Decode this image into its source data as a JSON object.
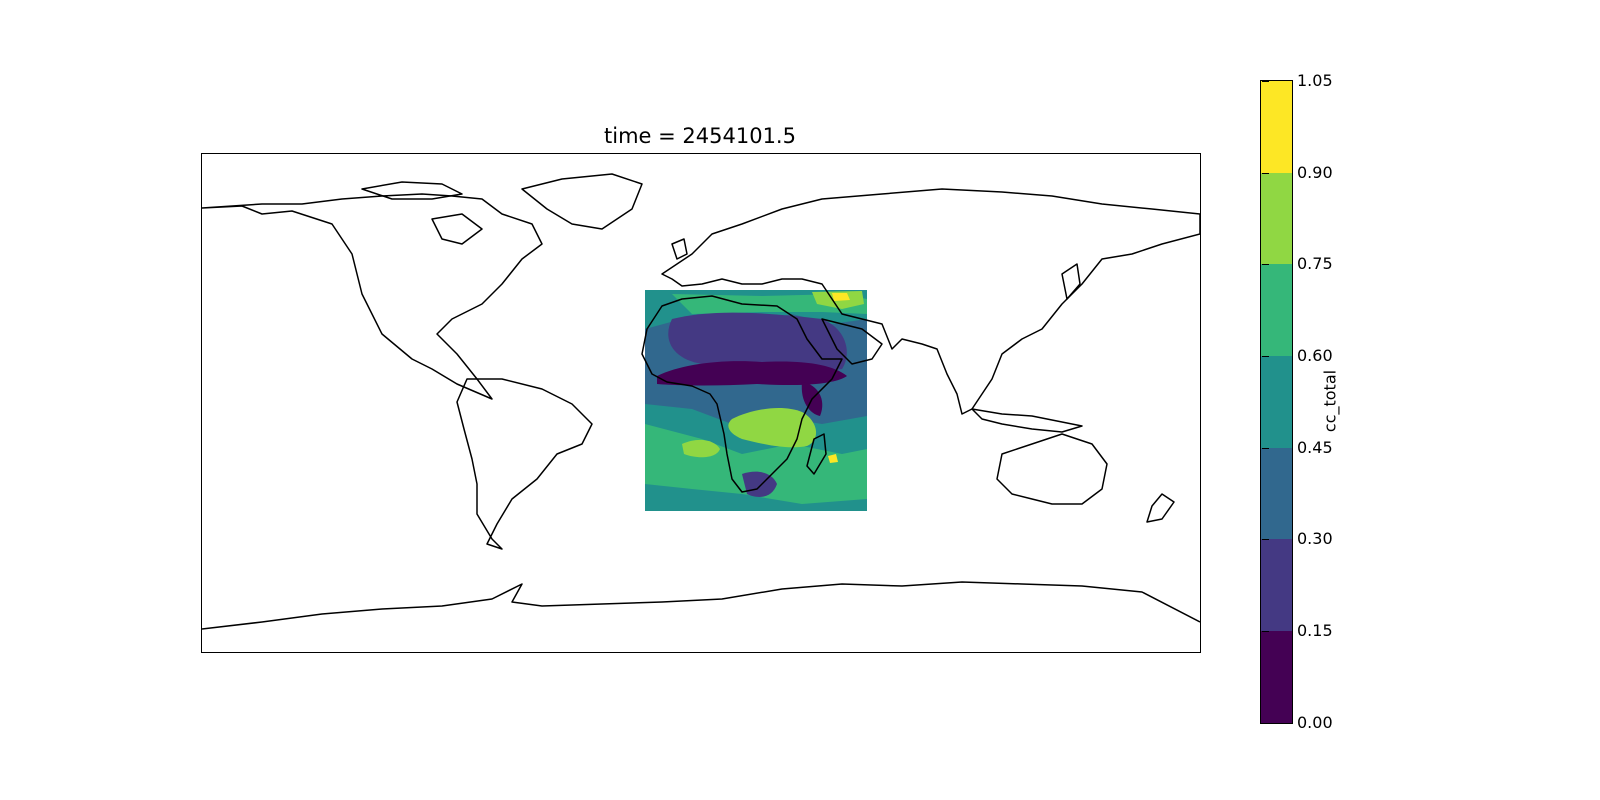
{
  "figure": {
    "title": "time = 2454101.5"
  },
  "colorbar": {
    "label": "cc_total",
    "levels": [
      "0.00",
      "0.15",
      "0.30",
      "0.45",
      "0.60",
      "0.75",
      "0.90",
      "1.05"
    ],
    "colors": [
      "#440154",
      "#443983",
      "#31688e",
      "#21918c",
      "#35b779",
      "#90d743",
      "#fde725"
    ]
  },
  "chart_data": {
    "type": "heatmap",
    "title": "time = 2454101.5",
    "projection": "PlateCarree (global map with coastlines)",
    "variable": "cc_total",
    "extent_lon": [
      -180,
      180
    ],
    "extent_lat": [
      -90,
      90
    ],
    "data_region": {
      "lon": [
        -20,
        60
      ],
      "lat": [
        -40,
        40
      ]
    },
    "contour_levels": [
      0.0,
      0.15,
      0.3,
      0.45,
      0.6,
      0.75,
      0.9,
      1.05
    ],
    "colormap": "viridis",
    "colorbar_location": "right"
  }
}
